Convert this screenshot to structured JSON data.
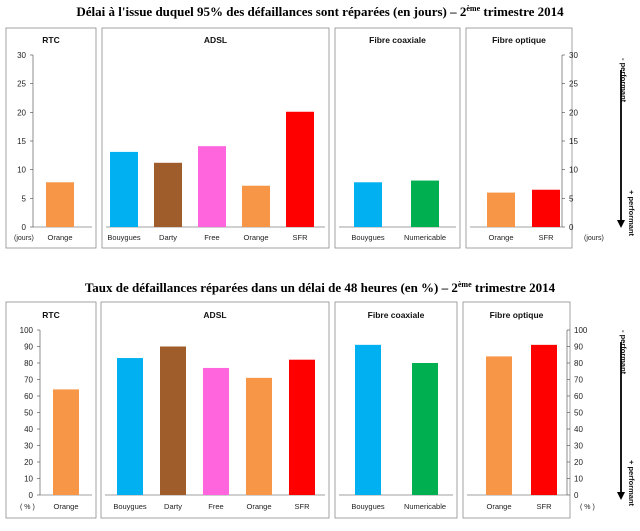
{
  "chart_data": [
    {
      "type": "bar",
      "title_main": "Délai à l'issue duquel 95% des défaillances sont réparées (en jours) – 2",
      "title_sup": "ème",
      "title_tail": " trimestre 2014",
      "ylim": [
        0,
        30
      ],
      "yticks": [
        "0",
        "5",
        "10",
        "15",
        "20",
        "25",
        "30"
      ],
      "unit_left": "(jours)",
      "unit_right": "(jours)",
      "perf_top": "- performant",
      "perf_bottom": "+ performant",
      "panels": [
        {
          "title": "RTC",
          "categories": [
            "Orange"
          ],
          "values": [
            7.8
          ],
          "colors": [
            "#F79646"
          ]
        },
        {
          "title": "ADSL",
          "categories": [
            "Bouygues",
            "Darty",
            "Free",
            "Orange",
            "SFR"
          ],
          "values": [
            13.1,
            11.2,
            14.1,
            7.2,
            20.1
          ],
          "colors": [
            "#00B0F0",
            "#9E5D2A",
            "#FF66DD",
            "#F79646",
            "#FF0000"
          ]
        },
        {
          "title": "Fibre coaxiale",
          "categories": [
            "Bouygues",
            "Numericable"
          ],
          "values": [
            7.8,
            8.1
          ],
          "colors": [
            "#00B0F0",
            "#00B050"
          ]
        },
        {
          "title": "Fibre optique",
          "categories": [
            "Orange",
            "SFR"
          ],
          "values": [
            6.0,
            6.5
          ],
          "colors": [
            "#F79646",
            "#FF0000"
          ]
        }
      ]
    },
    {
      "type": "bar",
      "title_main": "Taux de défaillances réparées dans un délai de 48 heures (en %) – 2",
      "title_sup": "ème",
      "title_tail": " trimestre 2014",
      "ylim": [
        0,
        100
      ],
      "yticks": [
        "0",
        "10",
        "20",
        "30",
        "40",
        "50",
        "60",
        "70",
        "80",
        "90",
        "100"
      ],
      "unit_left": "( % )",
      "unit_right": "( % )",
      "perf_top": "- performant",
      "perf_bottom": "+ performant",
      "panels": [
        {
          "title": "RTC",
          "categories": [
            "Orange"
          ],
          "values": [
            64
          ],
          "colors": [
            "#F79646"
          ]
        },
        {
          "title": "ADSL",
          "categories": [
            "Bouygues",
            "Darty",
            "Free",
            "Orange",
            "SFR"
          ],
          "values": [
            83,
            90,
            77,
            71,
            82
          ],
          "colors": [
            "#00B0F0",
            "#9E5D2A",
            "#FF66DD",
            "#F79646",
            "#FF0000"
          ]
        },
        {
          "title": "Fibre coaxiale",
          "categories": [
            "Bouygues",
            "Numericable"
          ],
          "values": [
            91,
            80
          ],
          "colors": [
            "#00B0F0",
            "#00B050"
          ]
        },
        {
          "title": "Fibre optique",
          "categories": [
            "Orange",
            "SFR"
          ],
          "values": [
            84,
            91
          ],
          "colors": [
            "#F79646",
            "#FF0000"
          ]
        }
      ]
    }
  ]
}
